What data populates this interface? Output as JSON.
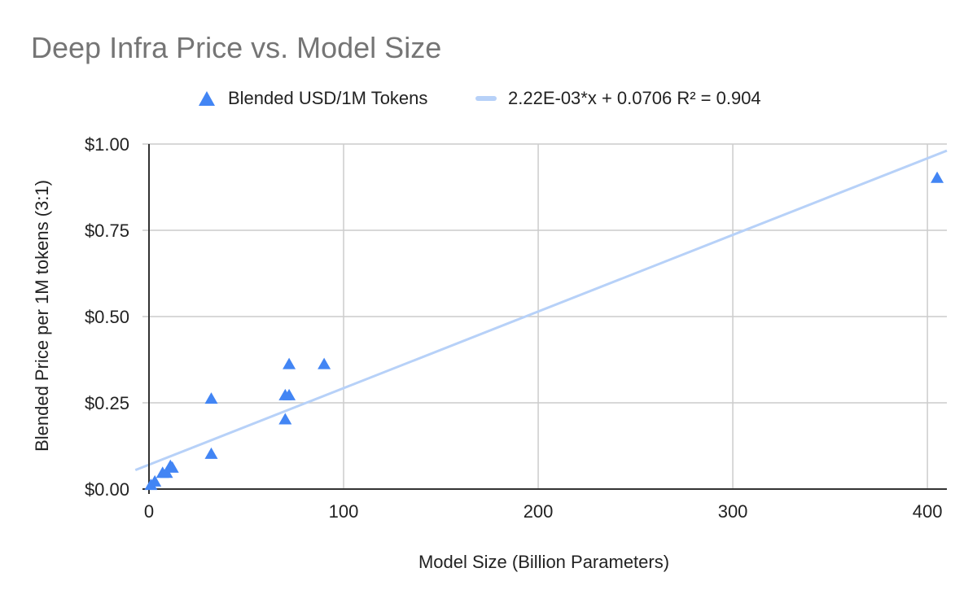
{
  "chart_data": {
    "type": "scatter",
    "title": "Deep Infra Price vs. Model Size",
    "xlabel": "Model Size (Billion Parameters)",
    "ylabel": "Blended Price per 1M tokens (3:1)",
    "xlim": [
      0,
      410
    ],
    "ylim": [
      0,
      1.0
    ],
    "x_ticks": [
      0,
      100,
      200,
      300,
      400
    ],
    "y_ticks": [
      {
        "value": 0,
        "label": "$0.00"
      },
      {
        "value": 0.25,
        "label": "$0.25"
      },
      {
        "value": 0.5,
        "label": "$0.50"
      },
      {
        "value": 0.75,
        "label": "$0.75"
      },
      {
        "value": 1.0,
        "label": "$1.00"
      }
    ],
    "grid": true,
    "legend_position": "top",
    "series": [
      {
        "name": "Blended USD/1M Tokens",
        "marker": "triangle",
        "color": "#4285F4",
        "points": [
          {
            "x": 1,
            "y": 0.01
          },
          {
            "x": 3,
            "y": 0.02
          },
          {
            "x": 7,
            "y": 0.045
          },
          {
            "x": 9,
            "y": 0.045
          },
          {
            "x": 11,
            "y": 0.065
          },
          {
            "x": 12,
            "y": 0.06
          },
          {
            "x": 32,
            "y": 0.26
          },
          {
            "x": 32,
            "y": 0.1
          },
          {
            "x": 70,
            "y": 0.27
          },
          {
            "x": 70,
            "y": 0.2
          },
          {
            "x": 72,
            "y": 0.27
          },
          {
            "x": 72,
            "y": 0.36
          },
          {
            "x": 90,
            "y": 0.36
          },
          {
            "x": 405,
            "y": 0.9
          }
        ]
      }
    ],
    "trendline": {
      "name": "2.22E-03*x + 0.0706 R² = 0.904",
      "color": "#B7D1F8",
      "slope": 0.00222,
      "intercept": 0.0706,
      "r2": 0.904
    }
  }
}
